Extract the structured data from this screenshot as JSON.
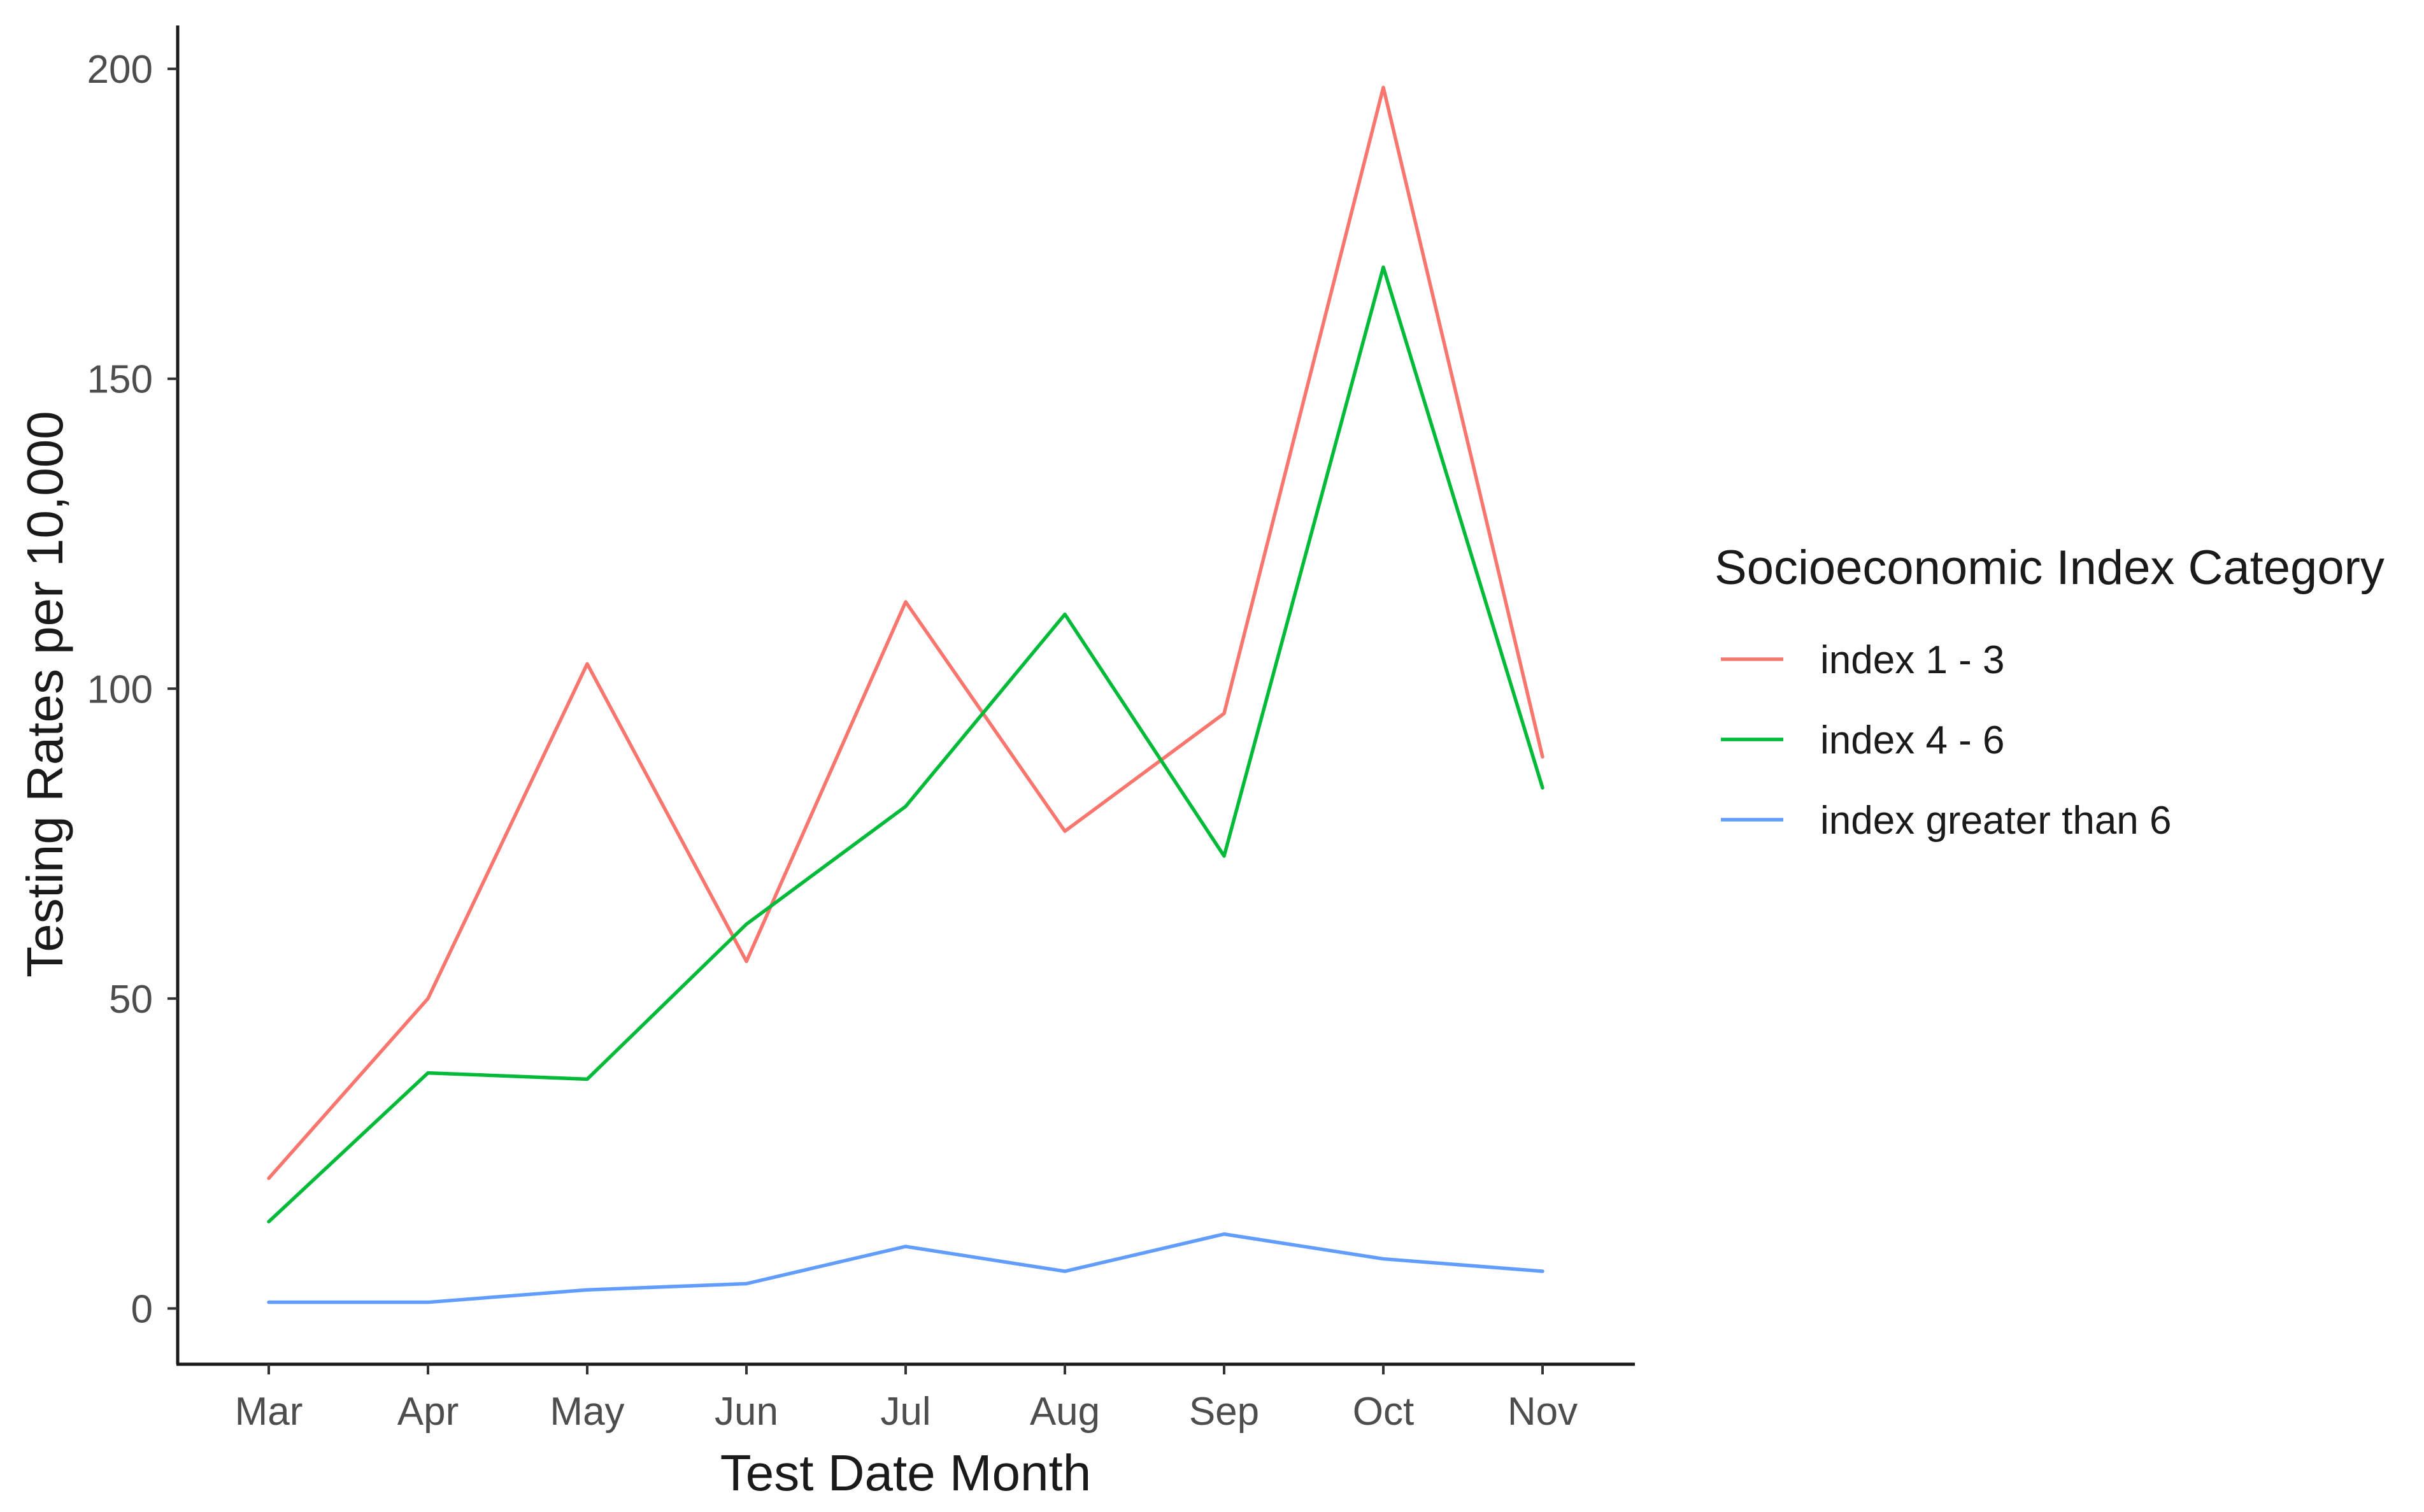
{
  "chart_data": {
    "type": "line",
    "title": "",
    "xlabel": "Test Date Month",
    "ylabel": "Testing Rates per 10,000",
    "categories": [
      "Mar",
      "Apr",
      "May",
      "Jun",
      "Jul",
      "Aug",
      "Sep",
      "Oct",
      "Nov"
    ],
    "ylim": [
      -9,
      207
    ],
    "yticks": [
      0,
      50,
      100,
      150,
      200
    ],
    "grid": false,
    "legend": {
      "title": "Socioeconomic Index Category",
      "position": "right"
    },
    "series": [
      {
        "name": "index 1 - 3",
        "color": "#F8766D",
        "values": [
          21,
          50,
          104,
          56,
          114,
          77,
          96,
          197,
          89
        ]
      },
      {
        "name": "index 4 - 6",
        "color": "#00BA38",
        "values": [
          14,
          38,
          37,
          62,
          81,
          112,
          73,
          168,
          84
        ]
      },
      {
        "name": "index greater than 6",
        "color": "#619CFF",
        "values": [
          1,
          1,
          3,
          4,
          10,
          6,
          12,
          8,
          6
        ]
      }
    ]
  }
}
